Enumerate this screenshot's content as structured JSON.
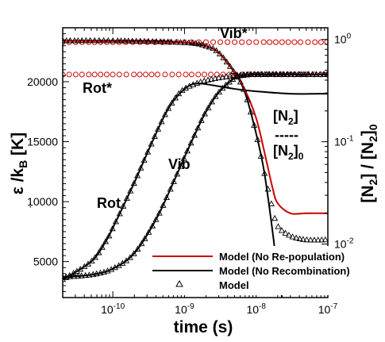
{
  "chart_data": {
    "type": "line",
    "xlabel": "time (s)",
    "ylabel_left": "ε /k",
    "ylabel_left_subscript": "B",
    "ylabel_left_small_subscript": "...",
    "ylabel_left_unit": "[K]",
    "ylabel_right": "[N",
    "ylabel_right_sub1": "2",
    "ylabel_right_mid": "] / [N",
    "ylabel_right_sub2": "2",
    "ylabel_right_end": "]",
    "ylabel_right_sub3": "0",
    "x_scale": "log",
    "xlim": [
      2e-11,
      1e-07
    ],
    "ylim_left": [
      2000,
      24500
    ],
    "ylim_right": [
      0.003,
      1.3
    ],
    "y_right_scale": "log",
    "x_ticks": [
      {
        "value": 1e-10,
        "base": "10",
        "exp": "-10"
      },
      {
        "value": 1e-09,
        "base": "10",
        "exp": "-9"
      },
      {
        "value": 1e-08,
        "base": "10",
        "exp": "-8"
      },
      {
        "value": 1e-07,
        "base": "10",
        "exp": "-7"
      }
    ],
    "y_left_ticks": [
      {
        "value": 5000,
        "label": "5000"
      },
      {
        "value": 10000,
        "label": "10000"
      },
      {
        "value": 15000,
        "label": "15000"
      },
      {
        "value": 20000,
        "label": "20000"
      }
    ],
    "y_right_ticks": [
      {
        "value": 1,
        "base": "10",
        "exp": "0"
      },
      {
        "value": 0.1,
        "base": "10",
        "exp": "-1"
      },
      {
        "value": 0.01,
        "base": "10",
        "exp": "-2"
      }
    ],
    "annotations": {
      "vib_star": "Vib*",
      "rot_star": "Rot*",
      "vib": "Vib",
      "rot": "Rot",
      "frac_num_a": "[N",
      "frac_num_sub": "2",
      "frac_num_b": "]",
      "frac_dash": "-----",
      "frac_den_a": "[N",
      "frac_den_sub": "2",
      "frac_den_b": "]",
      "frac_den_sub2": "0"
    },
    "legend": {
      "placement": "bottom-right",
      "entries": [
        {
          "label": "Model (No Re-population)",
          "color": "#cc0000",
          "style": "line"
        },
        {
          "label": "Model (No Recombination)",
          "color": "#000000",
          "style": "line"
        },
        {
          "label": "Model",
          "color": "#000000",
          "style": "triangle"
        }
      ]
    },
    "colors": {
      "red": "#cc0000",
      "black": "#000000"
    },
    "series": [
      {
        "id": "vib_star_equilibrium",
        "axis": "left",
        "style": "red-circles",
        "x": [
          2e-11,
          1e-10,
          1e-09,
          1e-08,
          1e-07
        ],
        "y": [
          23300,
          23300,
          23300,
          23300,
          23300
        ]
      },
      {
        "id": "rot_star_equilibrium",
        "axis": "left",
        "style": "red-circles",
        "x": [
          2e-11,
          1e-10,
          1e-09,
          3e-09,
          1e-08,
          1e-07
        ],
        "y": [
          20600,
          20600,
          20600,
          20600,
          20600,
          20600
        ]
      },
      {
        "id": "vib_no_recombination",
        "axis": "left",
        "style": "black-line",
        "x": [
          2e-11,
          5e-11,
          1e-10,
          2e-10,
          4e-10,
          7e-10,
          1e-09,
          1.5e-09,
          2e-09,
          3e-09,
          5e-09,
          7e-09,
          1e-08,
          2e-08,
          1e-07
        ],
        "y": [
          3700,
          3900,
          4400,
          5700,
          8500,
          11600,
          13700,
          16000,
          17500,
          19100,
          20300,
          20550,
          20600,
          20600,
          20600
        ]
      },
      {
        "id": "rot_no_recombination",
        "axis": "left",
        "style": "black-line",
        "x": [
          2e-11,
          5e-11,
          8e-11,
          1e-10,
          2e-10,
          3e-10,
          5e-10,
          7e-10,
          1e-09,
          1.3e-09,
          1.7e-09,
          2.5e-09,
          5e-09,
          1e-08,
          3e-08,
          1e-07
        ],
        "y": [
          3500,
          5000,
          6700,
          7800,
          11600,
          14000,
          16900,
          18400,
          19400,
          19800,
          19850,
          19700,
          19400,
          19200,
          19000,
          19000
        ]
      },
      {
        "id": "concentration_no_recombination",
        "axis": "right",
        "style": "black-line",
        "x": [
          2e-11,
          1e-10,
          5e-10,
          1e-09,
          2e-09,
          3e-09,
          5e-09,
          7e-09,
          1e-08,
          1.3e-08,
          1.7e-08,
          2e-08,
          2.3e-08
        ],
        "y": [
          0.97,
          0.97,
          0.96,
          0.93,
          0.86,
          0.74,
          0.47,
          0.3,
          0.12,
          0.05,
          0.013,
          0.005,
          0.003
        ]
      },
      {
        "id": "concentration_no_repopulation",
        "axis": "right",
        "style": "red-line",
        "x": [
          2e-11,
          1e-09,
          2e-09,
          3e-09,
          5e-09,
          7e-09,
          1e-08,
          1.3e-08,
          1.7e-08,
          2e-08,
          3e-08,
          5e-08,
          1e-07
        ],
        "y": [
          0.97,
          0.93,
          0.86,
          0.74,
          0.47,
          0.32,
          0.17,
          0.08,
          0.035,
          0.025,
          0.02,
          0.02,
          0.02
        ]
      },
      {
        "id": "model_vib",
        "axis": "left",
        "style": "triangles",
        "x": [
          2e-11,
          5e-11,
          1e-10,
          2e-10,
          4e-10,
          7e-10,
          1e-09,
          1.5e-09,
          2e-09,
          3e-09,
          5e-09,
          7e-09,
          1e-08,
          2e-08,
          5e-08,
          1e-07
        ],
        "y": [
          3700,
          3900,
          4400,
          5700,
          8500,
          11600,
          13700,
          16000,
          17500,
          19100,
          20300,
          20550,
          20600,
          20600,
          20600,
          20600
        ]
      },
      {
        "id": "model_rot",
        "axis": "left",
        "style": "triangles",
        "x": [
          2e-11,
          5e-11,
          8e-11,
          1e-10,
          2e-10,
          3e-10,
          5e-10,
          7e-10,
          1e-09,
          2e-09,
          5e-09,
          1e-08,
          3e-08,
          1e-07
        ],
        "y": [
          3500,
          5000,
          6700,
          7800,
          11600,
          14000,
          16900,
          18400,
          19400,
          20100,
          20500,
          20600,
          20600,
          20600
        ]
      },
      {
        "id": "model_concentration",
        "axis": "right",
        "style": "triangles",
        "x": [
          2e-11,
          1e-10,
          1e-09,
          2e-09,
          3e-09,
          5e-09,
          7e-09,
          1e-08,
          1.3e-08,
          1.7e-08,
          2e-08,
          3e-08,
          5e-08,
          1e-07
        ],
        "y": [
          0.97,
          0.97,
          0.93,
          0.86,
          0.74,
          0.47,
          0.3,
          0.12,
          0.05,
          0.022,
          0.015,
          0.012,
          0.011,
          0.011
        ]
      }
    ]
  }
}
